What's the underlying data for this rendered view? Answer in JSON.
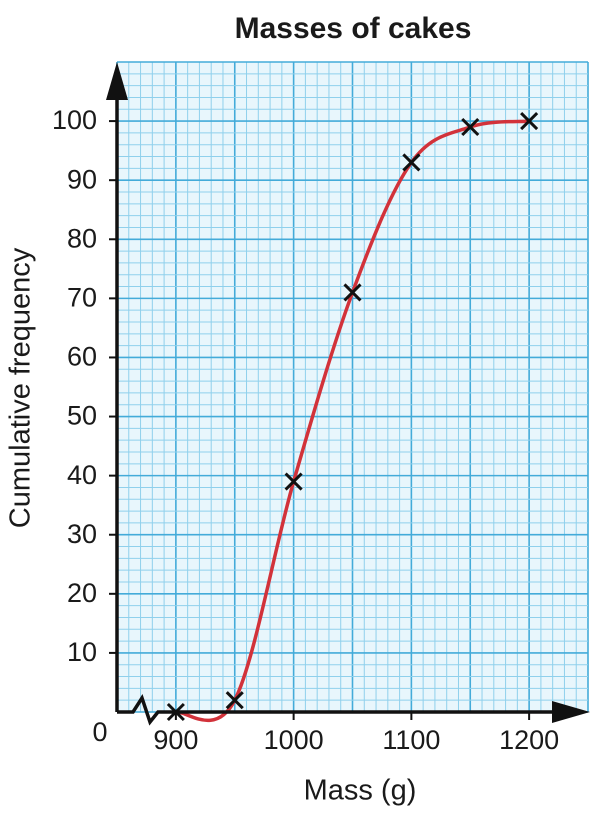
{
  "chart_data": {
    "type": "line",
    "title": "Masses of cakes",
    "x_label": "Mass (g)",
    "y_label": "Cumulative frequency",
    "origin_label": "0",
    "x": [
      900,
      950,
      1000,
      1050,
      1100,
      1150,
      1200
    ],
    "series": [
      {
        "color": "#d2323a",
        "values": [
          0,
          2,
          39,
          71,
          93,
          99,
          100
        ]
      }
    ],
    "xlim": [
      850,
      1250
    ],
    "ylim": [
      0,
      110
    ],
    "xticks": [
      900,
      1000,
      1100,
      1200
    ],
    "yticks": [
      10,
      20,
      30,
      40,
      50,
      60,
      70,
      80,
      90,
      100
    ],
    "grid": true
  }
}
